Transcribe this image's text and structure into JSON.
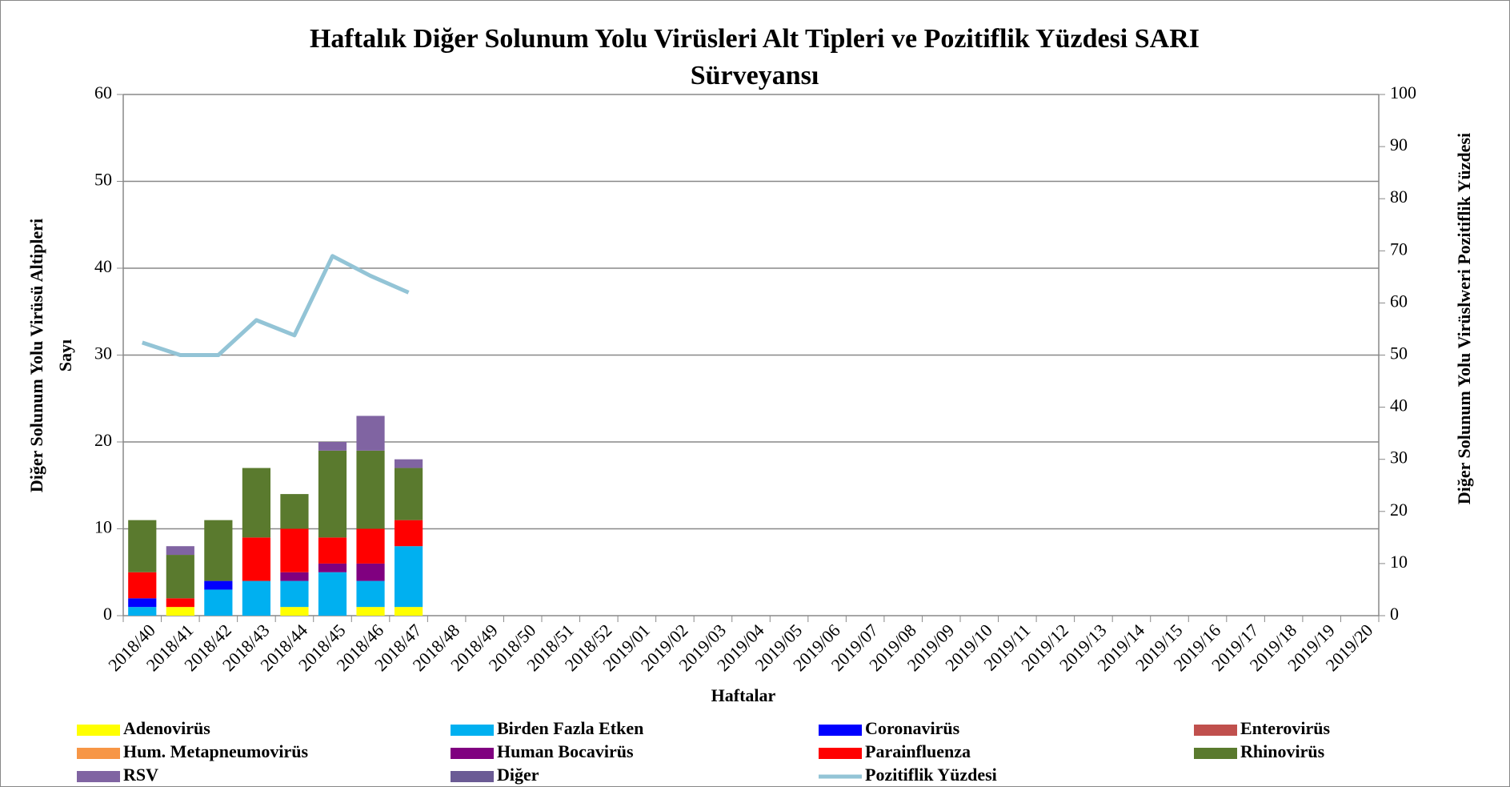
{
  "chart_data": {
    "type": "bar",
    "stacked": true,
    "title": [
      "Haftalık Diğer Solunum Yolu Virüsleri Alt Tipleri ve Pozitiflik Yüzdesi SARI",
      "Sürveyansı"
    ],
    "ylabel": [
      "Diğer Solunum Yolu Virüsü Altipleri",
      "Sayı"
    ],
    "y2label": "Diğer Solunum Yolu Virüslweri Pozitiflik Yüzdesi",
    "xlabel": "Haftalar",
    "categories": [
      "2018/40",
      "2018/41",
      "2018/42",
      "2018/43",
      "2018/44",
      "2018/45",
      "2018/46",
      "2018/47",
      "2018/48",
      "2018/49",
      "2018/50",
      "2018/51",
      "2018/52",
      "2019/01",
      "2019/02",
      "2019/03",
      "2019/04",
      "2019/05",
      "2019/06",
      "2019/07",
      "2019/08",
      "2019/09",
      "2019/10",
      "2019/11",
      "2019/12",
      "2019/13",
      "2019/14",
      "2019/15",
      "2019/16",
      "2019/17",
      "2019/18",
      "2019/19",
      "2019/20"
    ],
    "ylim": [
      0,
      60
    ],
    "yticks": [
      0,
      10,
      20,
      30,
      40,
      50,
      60
    ],
    "y2lim": [
      0,
      100
    ],
    "y2ticks": [
      0,
      10,
      20,
      30,
      40,
      50,
      60,
      70,
      80,
      90,
      100
    ],
    "grid": true,
    "series": [
      {
        "name": "Adenovirüs",
        "color": "#ffff00",
        "values": [
          0,
          1,
          0,
          0,
          1,
          0,
          1,
          1,
          null,
          null,
          null,
          null,
          null,
          null,
          null,
          null,
          null,
          null,
          null,
          null,
          null,
          null,
          null,
          null,
          null,
          null,
          null,
          null,
          null,
          null,
          null,
          null,
          null
        ]
      },
      {
        "name": "Birden Fazla Etken",
        "color": "#00b0f0",
        "values": [
          1,
          0,
          3,
          4,
          3,
          5,
          3,
          7,
          null,
          null,
          null,
          null,
          null,
          null,
          null,
          null,
          null,
          null,
          null,
          null,
          null,
          null,
          null,
          null,
          null,
          null,
          null,
          null,
          null,
          null,
          null,
          null,
          null
        ]
      },
      {
        "name": "Coronavirüs",
        "color": "#0000ff",
        "values": [
          1,
          0,
          1,
          0,
          0,
          0,
          0,
          0,
          null,
          null,
          null,
          null,
          null,
          null,
          null,
          null,
          null,
          null,
          null,
          null,
          null,
          null,
          null,
          null,
          null,
          null,
          null,
          null,
          null,
          null,
          null,
          null,
          null
        ]
      },
      {
        "name": "Enterovirüs",
        "color": "#c0504d",
        "values": [
          0,
          0,
          0,
          0,
          0,
          0,
          0,
          0,
          null,
          null,
          null,
          null,
          null,
          null,
          null,
          null,
          null,
          null,
          null,
          null,
          null,
          null,
          null,
          null,
          null,
          null,
          null,
          null,
          null,
          null,
          null,
          null,
          null
        ]
      },
      {
        "name": "Hum. Metapneumovirüs",
        "color": "#f79646",
        "values": [
          0,
          0,
          0,
          0,
          0,
          0,
          0,
          0,
          null,
          null,
          null,
          null,
          null,
          null,
          null,
          null,
          null,
          null,
          null,
          null,
          null,
          null,
          null,
          null,
          null,
          null,
          null,
          null,
          null,
          null,
          null,
          null,
          null
        ]
      },
      {
        "name": "Human Bocavirüs",
        "color": "#800080",
        "values": [
          0,
          0,
          0,
          0,
          1,
          1,
          2,
          0,
          null,
          null,
          null,
          null,
          null,
          null,
          null,
          null,
          null,
          null,
          null,
          null,
          null,
          null,
          null,
          null,
          null,
          null,
          null,
          null,
          null,
          null,
          null,
          null,
          null
        ]
      },
      {
        "name": "Parainfluenza",
        "color": "#ff0000",
        "values": [
          3,
          1,
          0,
          5,
          5,
          3,
          4,
          3,
          null,
          null,
          null,
          null,
          null,
          null,
          null,
          null,
          null,
          null,
          null,
          null,
          null,
          null,
          null,
          null,
          null,
          null,
          null,
          null,
          null,
          null,
          null,
          null,
          null
        ]
      },
      {
        "name": "Rhinovirüs",
        "color": "#5a7a2e",
        "values": [
          6,
          5,
          7,
          8,
          4,
          10,
          9,
          6,
          null,
          null,
          null,
          null,
          null,
          null,
          null,
          null,
          null,
          null,
          null,
          null,
          null,
          null,
          null,
          null,
          null,
          null,
          null,
          null,
          null,
          null,
          null,
          null,
          null
        ]
      },
      {
        "name": "RSV",
        "color": "#8064a2",
        "values": [
          0,
          1,
          0,
          0,
          0,
          1,
          4,
          1,
          null,
          null,
          null,
          null,
          null,
          null,
          null,
          null,
          null,
          null,
          null,
          null,
          null,
          null,
          null,
          null,
          null,
          null,
          null,
          null,
          null,
          null,
          null,
          null,
          null
        ]
      },
      {
        "name": "Diğer",
        "color": "#6b5b95",
        "values": [
          0,
          0,
          0,
          0,
          0,
          0,
          0,
          0,
          null,
          null,
          null,
          null,
          null,
          null,
          null,
          null,
          null,
          null,
          null,
          null,
          null,
          null,
          null,
          null,
          null,
          null,
          null,
          null,
          null,
          null,
          null,
          null,
          null
        ]
      },
      {
        "name": "Pozitiflik Yüzdesi",
        "color": "#93c4d6",
        "type": "line",
        "axis": "y2",
        "values": [
          52.4,
          50,
          50,
          56.7,
          53.8,
          69,
          65.2,
          62,
          null,
          null,
          null,
          null,
          null,
          null,
          null,
          null,
          null,
          null,
          null,
          null,
          null,
          null,
          null,
          null,
          null,
          null,
          null,
          null,
          null,
          null,
          null,
          null,
          null
        ]
      }
    ]
  }
}
